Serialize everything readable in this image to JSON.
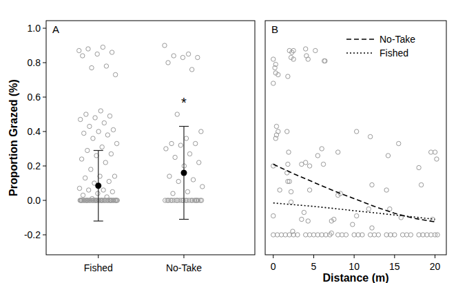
{
  "chart_data": [
    {
      "type": "scatter",
      "title": "A",
      "y_label": "Proportion Grazed (%)",
      "categories": [
        "Fished",
        "No-Take"
      ],
      "color": "#999999",
      "marker": "open-circle",
      "values": [
        [
          0.87,
          0.89,
          0.88,
          0.86,
          0.85,
          0.84,
          0.78,
          0.77,
          0.73,
          0.52,
          0.5,
          0.49,
          0.48,
          0.47,
          0.45,
          0.43,
          0.41,
          0.4,
          0.39,
          0.38,
          0.36,
          0.33,
          0.31,
          0.29,
          0.27,
          0.26,
          0.24,
          0.22,
          0.18,
          0.14,
          0.14,
          0.13,
          0.11,
          0.1,
          0.07,
          0.06,
          0.06,
          0.05,
          0.04,
          0.03,
          0.02,
          0.01,
          0,
          0,
          0,
          0,
          0,
          0,
          0,
          0,
          0,
          0,
          0,
          0,
          0,
          0,
          0,
          0,
          0,
          0,
          0,
          0,
          0,
          0,
          0,
          0,
          0,
          0,
          0,
          0,
          0,
          0,
          0,
          0,
          0,
          0,
          0,
          0,
          0,
          0,
          0,
          0
        ],
        [
          0.9,
          0.85,
          0.84,
          0.83,
          0.83,
          0.8,
          0.76,
          0.5,
          0.4,
          0.36,
          0.33,
          0.33,
          0.32,
          0.3,
          0.27,
          0.25,
          0.22,
          0.2,
          0.14,
          0.12,
          0.11,
          0.08,
          0.05,
          0.04,
          0,
          0,
          0,
          0,
          0,
          0,
          0,
          0,
          0,
          0,
          0,
          0,
          0,
          0,
          0,
          0,
          0,
          0,
          0,
          0,
          0,
          0
        ]
      ],
      "means": [
        0.085,
        0.16
      ],
      "errors": [
        0.205,
        0.27
      ],
      "annotations": [
        {
          "text": "*",
          "x": "No-Take",
          "y": 0.59
        }
      ],
      "ylim": [
        -0.316,
        1.044
      ],
      "yticks": [
        -0.2,
        {
          "value": 0,
          "label": "0.0"
        },
        0.2,
        0.4,
        0.6,
        0.8,
        {
          "value": 1,
          "label": "1.0"
        }
      ]
    },
    {
      "type": "scatter",
      "title": "B",
      "x_label": "Distance (m)",
      "xlim": [
        -1,
        21.4
      ],
      "ylim": [
        -0.316,
        1.044
      ],
      "xticks": [
        0,
        5,
        10,
        15,
        20
      ],
      "tick_labels": "x",
      "legend": "top-right",
      "series": [
        {
          "type": "scatter",
          "marker": "open-circle",
          "color": "#999999",
          "x": [
            0,
            0.3,
            0.2,
            0.3,
            0.6,
            0,
            2,
            2.3,
            2.2,
            2.5,
            2.5,
            1.8,
            4,
            4.1,
            4.3,
            5.2,
            6.3,
            6.4,
            0.4,
            0.6,
            0.4,
            0.3,
            0,
            1.7,
            1.9,
            1.8,
            1.7,
            1.8,
            2,
            3.5,
            4,
            4.5,
            5.5,
            6,
            6.2,
            8,
            10.3,
            12,
            14.2,
            15.5,
            18,
            19.5,
            20,
            20.2,
            18.3,
            12.2,
            14,
            8.3,
            8,
            4.5,
            2.2,
            0.8,
            2.2,
            3.8,
            3.5,
            4.3,
            7.2,
            7.5,
            9.8,
            10.3,
            12.2,
            11.8,
            14.4,
            15.8,
            19.7,
            0,
            2.4,
            7.2,
            0,
            0.5,
            1,
            1.5,
            2,
            2.5,
            3,
            4,
            4.5,
            5,
            5.5,
            6,
            6.5,
            7,
            8,
            8.5,
            9,
            10,
            10.5,
            11,
            12,
            12.5,
            13,
            14,
            14.5,
            15,
            16,
            16.5,
            17,
            18,
            18.5,
            19,
            19.5,
            20,
            20.3
          ],
          "values": [
            0.82,
            0.79,
            0.77,
            0.74,
            0.73,
            0.68,
            0.87,
            0.86,
            0.83,
            0.82,
            0.87,
            0.72,
            0.88,
            0.84,
            0.82,
            0.87,
            0.81,
            0.81,
            0.43,
            0.4,
            0.38,
            0.36,
            0.2,
            0.4,
            0.28,
            0.21,
            0.16,
            0.11,
            0.11,
            0.21,
            0.22,
            0.2,
            0.26,
            0.3,
            0.21,
            0.28,
            0.4,
            0.37,
            0.26,
            0.33,
            0.19,
            0.28,
            0.28,
            0.24,
            0.09,
            0.09,
            0.06,
            0.04,
            0.03,
            0.06,
            0.05,
            0.06,
            -0.01,
            -0.07,
            -0.11,
            -0.12,
            -0.12,
            -0.11,
            -0.14,
            -0.09,
            -0.16,
            -0.05,
            -0.05,
            -0.1,
            -0.11,
            -0.09,
            -0.18,
            -0.19,
            -0.2,
            -0.2,
            -0.2,
            -0.2,
            -0.2,
            -0.2,
            -0.2,
            -0.2,
            -0.2,
            -0.2,
            -0.2,
            -0.2,
            -0.2,
            -0.2,
            -0.2,
            -0.2,
            -0.2,
            -0.2,
            -0.2,
            -0.2,
            -0.2,
            -0.2,
            -0.2,
            -0.2,
            -0.2,
            -0.2,
            -0.2,
            -0.2,
            -0.2,
            -0.2,
            -0.2,
            -0.2,
            -0.2,
            -0.2,
            -0.2
          ]
        },
        {
          "name": "No-Take",
          "type": "line",
          "line_style": "dashed",
          "color": "#000000",
          "x": [
            0,
            2.5,
            5,
            7.5,
            10,
            12.5,
            15,
            17.5,
            20
          ],
          "values": [
            0.21,
            0.155,
            0.105,
            0.055,
            0.01,
            -0.035,
            -0.075,
            -0.105,
            -0.125
          ]
        },
        {
          "name": "Fished",
          "type": "line",
          "line_style": "dotted",
          "color": "#000000",
          "x": [
            0,
            2.5,
            5,
            7.5,
            10,
            12.5,
            15,
            17.5,
            20
          ],
          "values": [
            -0.015,
            -0.025,
            -0.035,
            -0.047,
            -0.06,
            -0.072,
            -0.085,
            -0.097,
            -0.11
          ]
        }
      ]
    }
  ]
}
